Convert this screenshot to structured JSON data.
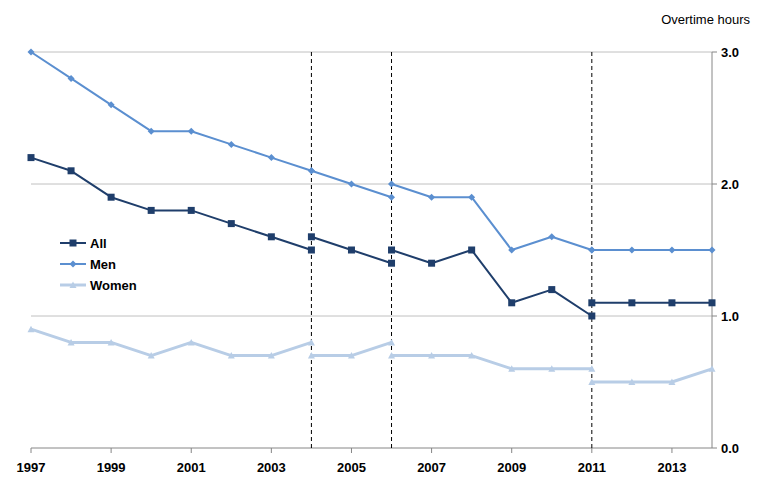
{
  "chart_data": {
    "type": "line",
    "y_label": "Overtime hours",
    "x": [
      1997,
      1998,
      1999,
      2000,
      2001,
      2002,
      2003,
      2004,
      2004,
      2004,
      2005,
      2006,
      2006,
      2006,
      2007,
      2008,
      2009,
      2010,
      2011,
      2011,
      2011,
      2012,
      2013,
      2014
    ],
    "series": [
      {
        "name": "All",
        "color": "#1f3e6b",
        "marker": "square",
        "values": [
          2.2,
          2.1,
          1.9,
          1.8,
          1.8,
          1.7,
          1.6,
          1.5,
          null,
          1.6,
          1.5,
          1.4,
          null,
          1.5,
          1.4,
          1.5,
          1.1,
          1.2,
          1.0,
          null,
          1.1,
          1.1,
          1.1,
          1.1
        ]
      },
      {
        "name": "Men",
        "color": "#5b8fd0",
        "marker": "diamond",
        "values": [
          3.0,
          2.8,
          2.6,
          2.4,
          2.4,
          2.3,
          2.2,
          2.1,
          null,
          2.1,
          2.0,
          1.9,
          null,
          2.0,
          1.9,
          1.9,
          1.5,
          1.6,
          1.5,
          null,
          1.5,
          1.5,
          1.5,
          1.5
        ]
      },
      {
        "name": "Women",
        "color": "#b8cde6",
        "marker": "triangle",
        "values": [
          0.9,
          0.8,
          0.8,
          0.7,
          0.8,
          0.7,
          0.7,
          0.8,
          null,
          0.7,
          0.7,
          0.8,
          null,
          0.7,
          0.7,
          0.7,
          0.6,
          0.6,
          0.6,
          null,
          0.5,
          0.5,
          0.5,
          0.6
        ]
      }
    ],
    "series_breaks": [
      2004,
      2006,
      2011
    ],
    "xlim": [
      1997,
      2014
    ],
    "xticks": [
      1997,
      1999,
      2001,
      2003,
      2005,
      2007,
      2009,
      2011,
      2013
    ],
    "ylim": [
      0,
      3
    ],
    "yticks": [
      {
        "value": 0,
        "label": "0.0"
      },
      {
        "value": 1,
        "label": "1.0"
      },
      {
        "value": 2,
        "label": "2.0"
      },
      {
        "value": 3,
        "label": "3.0"
      }
    ],
    "grid": true,
    "legend": "left"
  }
}
